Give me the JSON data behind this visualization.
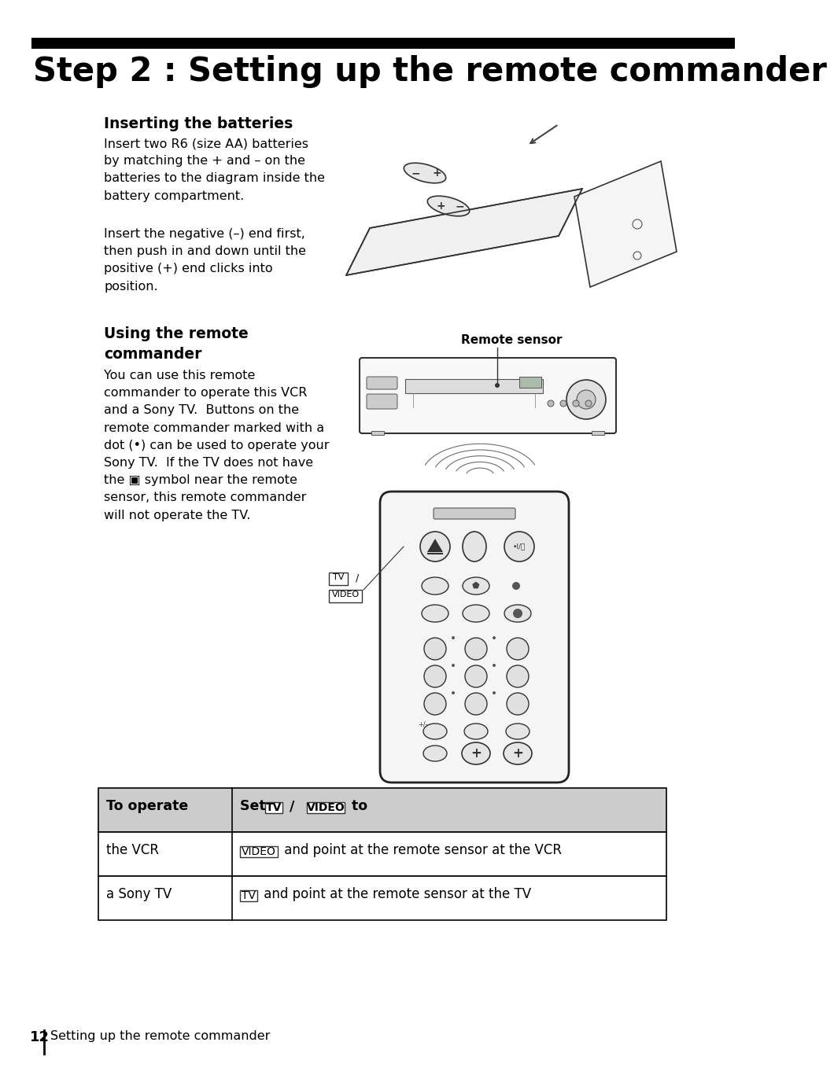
{
  "title": "Step 2 : Setting up the remote commander",
  "section1_heading": "Inserting the batteries",
  "section1_para1": "Insert two R6 (size AA) batteries\nby matching the + and – on the\nbatteries to the diagram inside the\nbattery compartment.",
  "section1_para2": "Insert the negative (–) end first,\nthen push in and down until the\npositive (+) end clicks into\nposition.",
  "section2_heading": "Using the remote\ncommander",
  "section2_para": "You can use this remote\ncommander to operate this VCR\nand a Sony TV.  Buttons on the\nremote commander marked with a\ndot (•) can be used to operate your\nSony TV.  If the TV does not have\nthe ▣ symbol near the remote\nsensor, this remote commander\nwill not operate the TV.",
  "remote_sensor_label": "Remote sensor",
  "tv_video_label": "TV /",
  "tv_video_label2": "VIDEO",
  "table_header_col1": "To operate",
  "table_header_col2_prefix": "Set ",
  "table_header_col2_suffix": " to",
  "table_row1_col1": "the VCR",
  "table_row1_col2_suffix": " and point at the remote sensor at the VCR",
  "table_row2_col1": "a Sony TV",
  "table_row2_col2_suffix": " and point at the remote sensor at the TV",
  "footer_number": "12",
  "footer_text": "Setting up the remote commander",
  "bg_color": "#ffffff",
  "text_color": "#000000",
  "title_bar_color": "#000000",
  "table_header_bg": "#cccccc",
  "table_border_color": "#000000"
}
